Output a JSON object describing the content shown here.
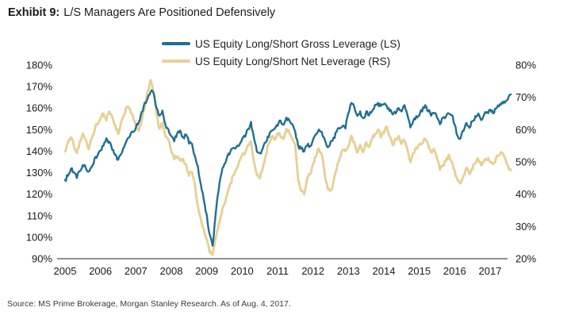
{
  "header": {
    "exhibit_label": "Exhibit 9:",
    "title": "L/S Managers Are Positioned Defensively"
  },
  "source_note": "Source: MS Prime Brokerage, Morgan Stanley Research. As of Aug. 4, 2017.",
  "colors": {
    "gross_line": "#20708f",
    "net_line": "#e7d096",
    "axis_line": "#4d4d4d",
    "axis_text": "#1a1a1a"
  },
  "chart_data": {
    "type": "line",
    "title": "",
    "grid": "off",
    "legend_position": "top-center",
    "x_tick_labels": [
      "2005",
      "2006",
      "2007",
      "2008",
      "2009",
      "2010",
      "2011",
      "2012",
      "2013",
      "2014",
      "2015",
      "2016",
      "2017"
    ],
    "x_range_years": [
      2005.0,
      2017.6
    ],
    "left_axis": {
      "label": "",
      "unit": "%",
      "min": 90,
      "max": 180,
      "tick_step": 10,
      "ticks": [
        "180%",
        "170%",
        "160%",
        "150%",
        "140%",
        "130%",
        "120%",
        "110%",
        "100%",
        "90%"
      ]
    },
    "right_axis": {
      "label": "",
      "unit": "%",
      "min": 20,
      "max": 80,
      "tick_step": 10,
      "ticks": [
        "80%",
        "70%",
        "60%",
        "50%",
        "40%",
        "30%",
        "20%"
      ]
    },
    "sampling": "monthly from Jan 2005 to Aug 2017, values in percent (estimated from plot)",
    "series": [
      {
        "name": "US Equity Long/Short Gross Leverage (LS)",
        "axis": "left",
        "color": "#20708f",
        "values": [
          126,
          129,
          132,
          130,
          128,
          131,
          134,
          132,
          130,
          133,
          136,
          138,
          140,
          143,
          146,
          144,
          141,
          138,
          136,
          139,
          142,
          145,
          147,
          149,
          151,
          154,
          158,
          162,
          165,
          168,
          167,
          160,
          156,
          159,
          152,
          150,
          147,
          145,
          148,
          150,
          146,
          148,
          144,
          143,
          138,
          133,
          124,
          118,
          110,
          101,
          96,
          110,
          122,
          130,
          134,
          137,
          140,
          141,
          142,
          143,
          145,
          147,
          150,
          153,
          146,
          140,
          139,
          141,
          144,
          147,
          150,
          151,
          152,
          154,
          152,
          155,
          154,
          152,
          149,
          142,
          141,
          140,
          143,
          142,
          145,
          148,
          150,
          149,
          145,
          142,
          144,
          146,
          149,
          151,
          152,
          151,
          158,
          163,
          160,
          156,
          158,
          155,
          158,
          157,
          159,
          161,
          162,
          161,
          162,
          161,
          159,
          157,
          158,
          160,
          158,
          161,
          157,
          151,
          154,
          156,
          157,
          159,
          161,
          159,
          157,
          158,
          156,
          153,
          155,
          156,
          158,
          157,
          152,
          147,
          146,
          150,
          153,
          151,
          154,
          156,
          157,
          155,
          157,
          158,
          159,
          158,
          160,
          161,
          163,
          162,
          164,
          166
        ]
      },
      {
        "name": "US Equity Long/Short Net Leverage (RS)",
        "axis": "right",
        "color": "#e7d096",
        "values": [
          53,
          56,
          58,
          55,
          53,
          56,
          59,
          57,
          54,
          57,
          60,
          62,
          63,
          65,
          63,
          66,
          64,
          61,
          59,
          62,
          65,
          67,
          66,
          64,
          61,
          60,
          63,
          67,
          72,
          75,
          72,
          65,
          60,
          62,
          58,
          57,
          53,
          51,
          52,
          50,
          51,
          49,
          46,
          47,
          43,
          36,
          32,
          29,
          26,
          22,
          21,
          26,
          30,
          34,
          37,
          40,
          43,
          46,
          48,
          50,
          52,
          53,
          55,
          56,
          50,
          46,
          45,
          48,
          52,
          56,
          58,
          57,
          59,
          58,
          57,
          60,
          59,
          57,
          55,
          44,
          41,
          40,
          45,
          46,
          49,
          52,
          54,
          52,
          46,
          42,
          41,
          44,
          48,
          51,
          54,
          53,
          55,
          58,
          56,
          53,
          55,
          53,
          56,
          55,
          57,
          59,
          60,
          58,
          59,
          61,
          58,
          55,
          57,
          58,
          56,
          57,
          54,
          50,
          53,
          54,
          55,
          56,
          57,
          55,
          53,
          54,
          51,
          48,
          49,
          50,
          52,
          50,
          47,
          44,
          43,
          46,
          48,
          46,
          48,
          50,
          51,
          49,
          50,
          51,
          50,
          49,
          51,
          52,
          53,
          51,
          49,
          47
        ]
      }
    ]
  }
}
